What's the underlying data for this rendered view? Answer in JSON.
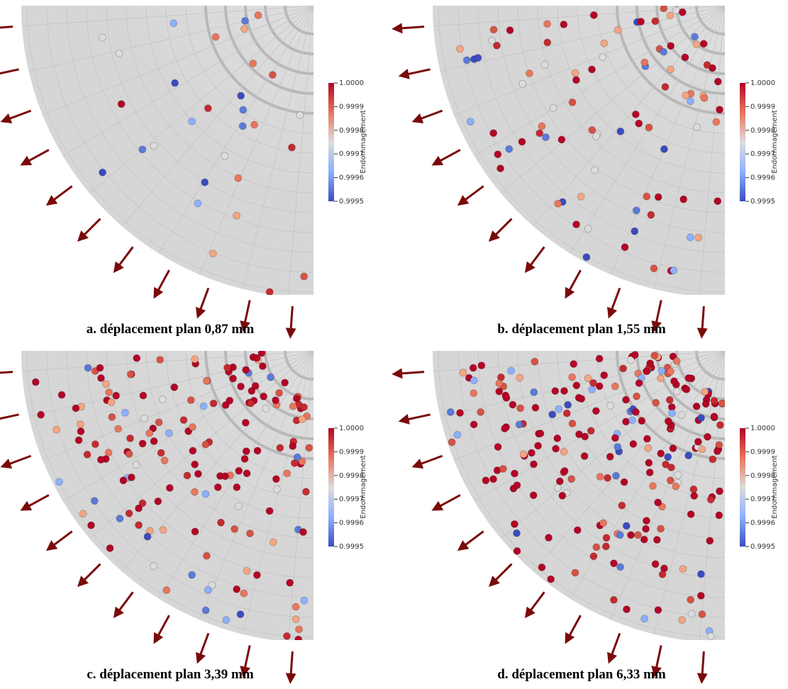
{
  "panels": [
    {
      "caption": "a. déplacement plan 0,87 mm",
      "colorbar": {
        "title": "Endommagement",
        "ticks": [
          "1.0000",
          "0.9999",
          "0.9998",
          "0.9997",
          "0.9996",
          "0.9995"
        ]
      }
    },
    {
      "caption": "b. déplacement plan 1,55 mm",
      "colorbar": {
        "title": "Endommagement",
        "ticks": [
          "1.0000",
          "0.9999",
          "0.9998",
          "0.9997",
          "0.9996",
          "0.9995"
        ]
      }
    },
    {
      "caption": "c. déplacement plan 3,39 mm",
      "colorbar": {
        "title": "Endommagement",
        "ticks": [
          "1.0000",
          "0.9999",
          "0.9998",
          "0.9997",
          "0.9996",
          "0.9995"
        ]
      }
    },
    {
      "caption": "d. déplacement plan 6,33 mm",
      "colorbar": {
        "title": "Endommagement",
        "ticks": [
          "1.0000",
          "0.9999",
          "0.9998",
          "0.9997",
          "0.9996",
          "0.9995"
        ]
      }
    }
  ]
}
